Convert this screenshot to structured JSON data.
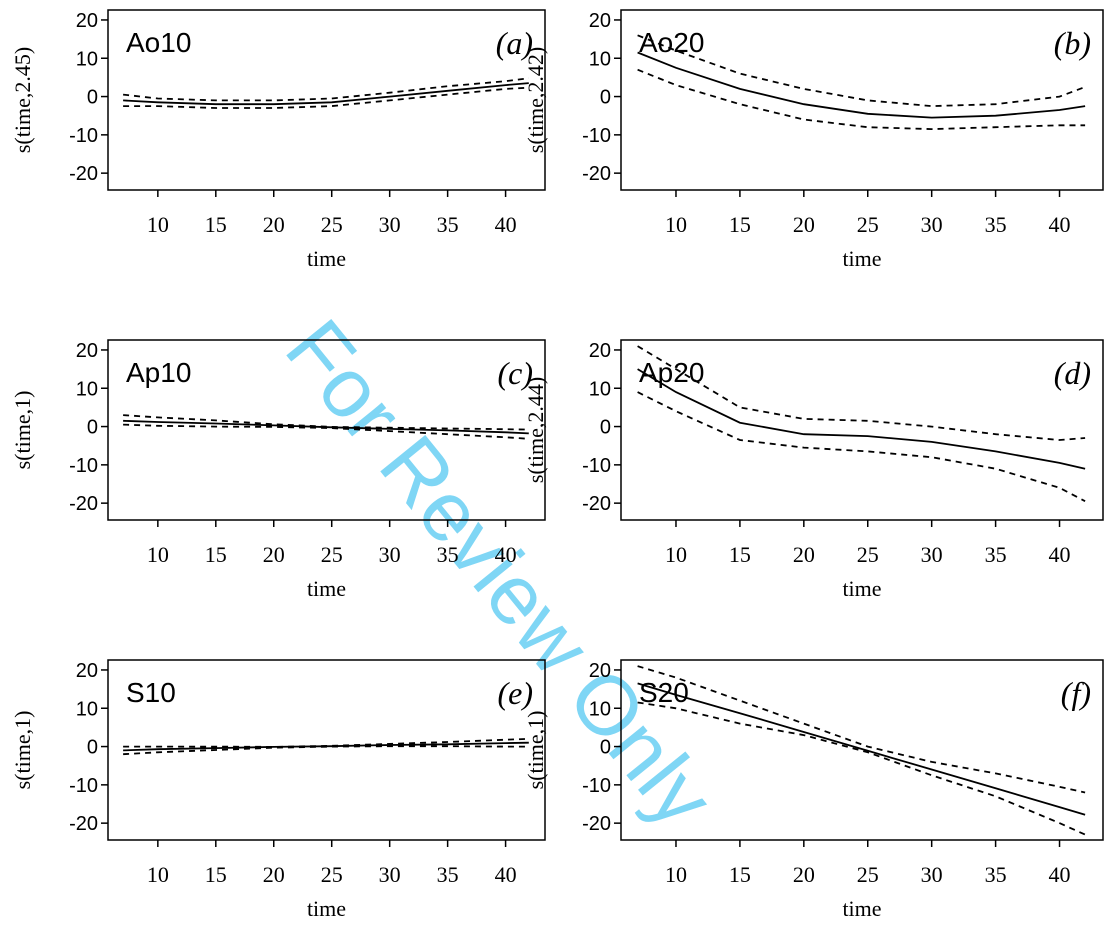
{
  "watermark": "For Review Only",
  "chart_data": [
    {
      "type": "line",
      "title": "Ao10",
      "panel": "(a)",
      "ylabel": "s(time,2.45)",
      "xlabel": "time",
      "x": [
        7,
        10,
        15,
        20,
        25,
        30,
        35,
        40,
        42
      ],
      "series": [
        {
          "color": "#000000",
          "dash": false,
          "values": [
            -1,
            -1.5,
            -2,
            -2,
            -1.5,
            0,
            1.5,
            3,
            3.5
          ]
        },
        {
          "color": "#000000",
          "dash": true,
          "values": [
            0.5,
            -0.5,
            -1,
            -1,
            -0.5,
            1,
            2.7,
            4,
            4.8
          ]
        },
        {
          "color": "#000000",
          "dash": true,
          "values": [
            -2.5,
            -2.5,
            -3,
            -3,
            -2.5,
            -1,
            0.5,
            2,
            2.3
          ]
        }
      ],
      "xlim": [
        5.7,
        43.4
      ],
      "ylim": [
        -24.4,
        22.6
      ],
      "xticks": [
        10,
        15,
        20,
        25,
        30,
        35,
        40
      ],
      "yticks": [
        -20,
        -10,
        0,
        10,
        20
      ]
    },
    {
      "type": "line",
      "title": "Ao20",
      "panel": "(b)",
      "ylabel": "s(time,2.42)",
      "xlabel": "time",
      "x": [
        7,
        10,
        15,
        20,
        25,
        30,
        35,
        40,
        42
      ],
      "series": [
        {
          "color": "#000000",
          "dash": false,
          "values": [
            11.5,
            7.5,
            2,
            -2,
            -4.5,
            -5.5,
            -5,
            -3.5,
            -2.5
          ]
        },
        {
          "color": "#000000",
          "dash": true,
          "values": [
            16,
            12,
            6,
            2,
            -1,
            -2.5,
            -2,
            0,
            2.5
          ]
        },
        {
          "color": "#000000",
          "dash": true,
          "values": [
            7,
            3,
            -2,
            -6,
            -8,
            -8.5,
            -8,
            -7.5,
            -7.5
          ]
        }
      ],
      "xlim": [
        5.7,
        43.4
      ],
      "ylim": [
        -24.4,
        22.6
      ],
      "xticks": [
        10,
        15,
        20,
        25,
        30,
        35,
        40
      ],
      "yticks": [
        -20,
        -10,
        0,
        10,
        20
      ]
    },
    {
      "type": "line",
      "title": "Ap10",
      "panel": "(c)",
      "ylabel": "s(time,1)",
      "xlabel": "time",
      "x": [
        7,
        10,
        15,
        20,
        25,
        30,
        35,
        40,
        42
      ],
      "series": [
        {
          "color": "#000000",
          "dash": false,
          "values": [
            1.5,
            1.2,
            0.8,
            0.3,
            -0.2,
            -0.6,
            -1,
            -1.5,
            -1.8
          ]
        },
        {
          "color": "#000000",
          "dash": true,
          "values": [
            3,
            2.4,
            1.6,
            0.6,
            -0.1,
            -0.3,
            -0.5,
            -0.7,
            -0.8
          ]
        },
        {
          "color": "#000000",
          "dash": true,
          "values": [
            0.5,
            0.2,
            0,
            -0.1,
            -0.4,
            -1.2,
            -2,
            -2.8,
            -3.2
          ]
        }
      ],
      "xlim": [
        5.7,
        43.4
      ],
      "ylim": [
        -24.4,
        22.6
      ],
      "xticks": [
        10,
        15,
        20,
        25,
        30,
        35,
        40
      ],
      "yticks": [
        -20,
        -10,
        0,
        10,
        20
      ]
    },
    {
      "type": "line",
      "title": "Ap20",
      "panel": "(d)",
      "ylabel": "s(time,2.44)",
      "xlabel": "time",
      "x": [
        7,
        10,
        15,
        20,
        25,
        30,
        35,
        40,
        42
      ],
      "series": [
        {
          "color": "#000000",
          "dash": false,
          "values": [
            15,
            9,
            1,
            -2,
            -2.5,
            -4,
            -6.5,
            -9.5,
            -11
          ]
        },
        {
          "color": "#000000",
          "dash": true,
          "values": [
            21,
            15,
            5,
            2,
            1.5,
            0,
            -2,
            -3.5,
            -3
          ]
        },
        {
          "color": "#000000",
          "dash": true,
          "values": [
            9,
            4,
            -3.5,
            -5.5,
            -6.5,
            -8,
            -11,
            -16,
            -19.5
          ]
        }
      ],
      "xlim": [
        5.7,
        43.4
      ],
      "ylim": [
        -24.4,
        22.6
      ],
      "xticks": [
        10,
        15,
        20,
        25,
        30,
        35,
        40
      ],
      "yticks": [
        -20,
        -10,
        0,
        10,
        20
      ]
    },
    {
      "type": "line",
      "title": "S10",
      "panel": "(e)",
      "ylabel": "s(time,1)",
      "xlabel": "time",
      "x": [
        7,
        10,
        15,
        20,
        25,
        30,
        35,
        40,
        42
      ],
      "series": [
        {
          "color": "#000000",
          "dash": false,
          "values": [
            -1,
            -0.7,
            -0.4,
            -0.1,
            0.1,
            0.4,
            0.6,
            0.9,
            1
          ]
        },
        {
          "color": "#000000",
          "dash": true,
          "values": [
            0,
            0,
            0,
            -0.1,
            0.2,
            0.7,
            1.2,
            1.8,
            2
          ]
        },
        {
          "color": "#000000",
          "dash": true,
          "values": [
            -2,
            -1.5,
            -0.9,
            -0.3,
            0,
            0.1,
            0.1,
            0,
            0
          ]
        }
      ],
      "xlim": [
        5.7,
        43.4
      ],
      "ylim": [
        -24.4,
        22.6
      ],
      "xticks": [
        10,
        15,
        20,
        25,
        30,
        35,
        40
      ],
      "yticks": [
        -20,
        -10,
        0,
        10,
        20
      ]
    },
    {
      "type": "line",
      "title": "S20",
      "panel": "(f)",
      "ylabel": "s(time,1)",
      "xlabel": "time",
      "x": [
        7,
        10,
        15,
        20,
        25,
        30,
        35,
        40,
        42
      ],
      "series": [
        {
          "color": "#000000",
          "dash": false,
          "values": [
            16.5,
            13.5,
            8.7,
            3.8,
            -1.1,
            -6,
            -10.9,
            -15.8,
            -17.8
          ]
        },
        {
          "color": "#000000",
          "dash": true,
          "values": [
            21,
            18,
            12,
            6,
            0,
            -4,
            -7,
            -10.5,
            -12
          ]
        },
        {
          "color": "#000000",
          "dash": true,
          "values": [
            11.5,
            10,
            6,
            3,
            -1.5,
            -7.5,
            -13,
            -20,
            -23
          ]
        }
      ],
      "xlim": [
        5.7,
        43.4
      ],
      "ylim": [
        -24.4,
        22.6
      ],
      "xticks": [
        10,
        15,
        20,
        25,
        30,
        35,
        40
      ],
      "yticks": [
        -20,
        -10,
        0,
        10,
        20
      ]
    }
  ]
}
